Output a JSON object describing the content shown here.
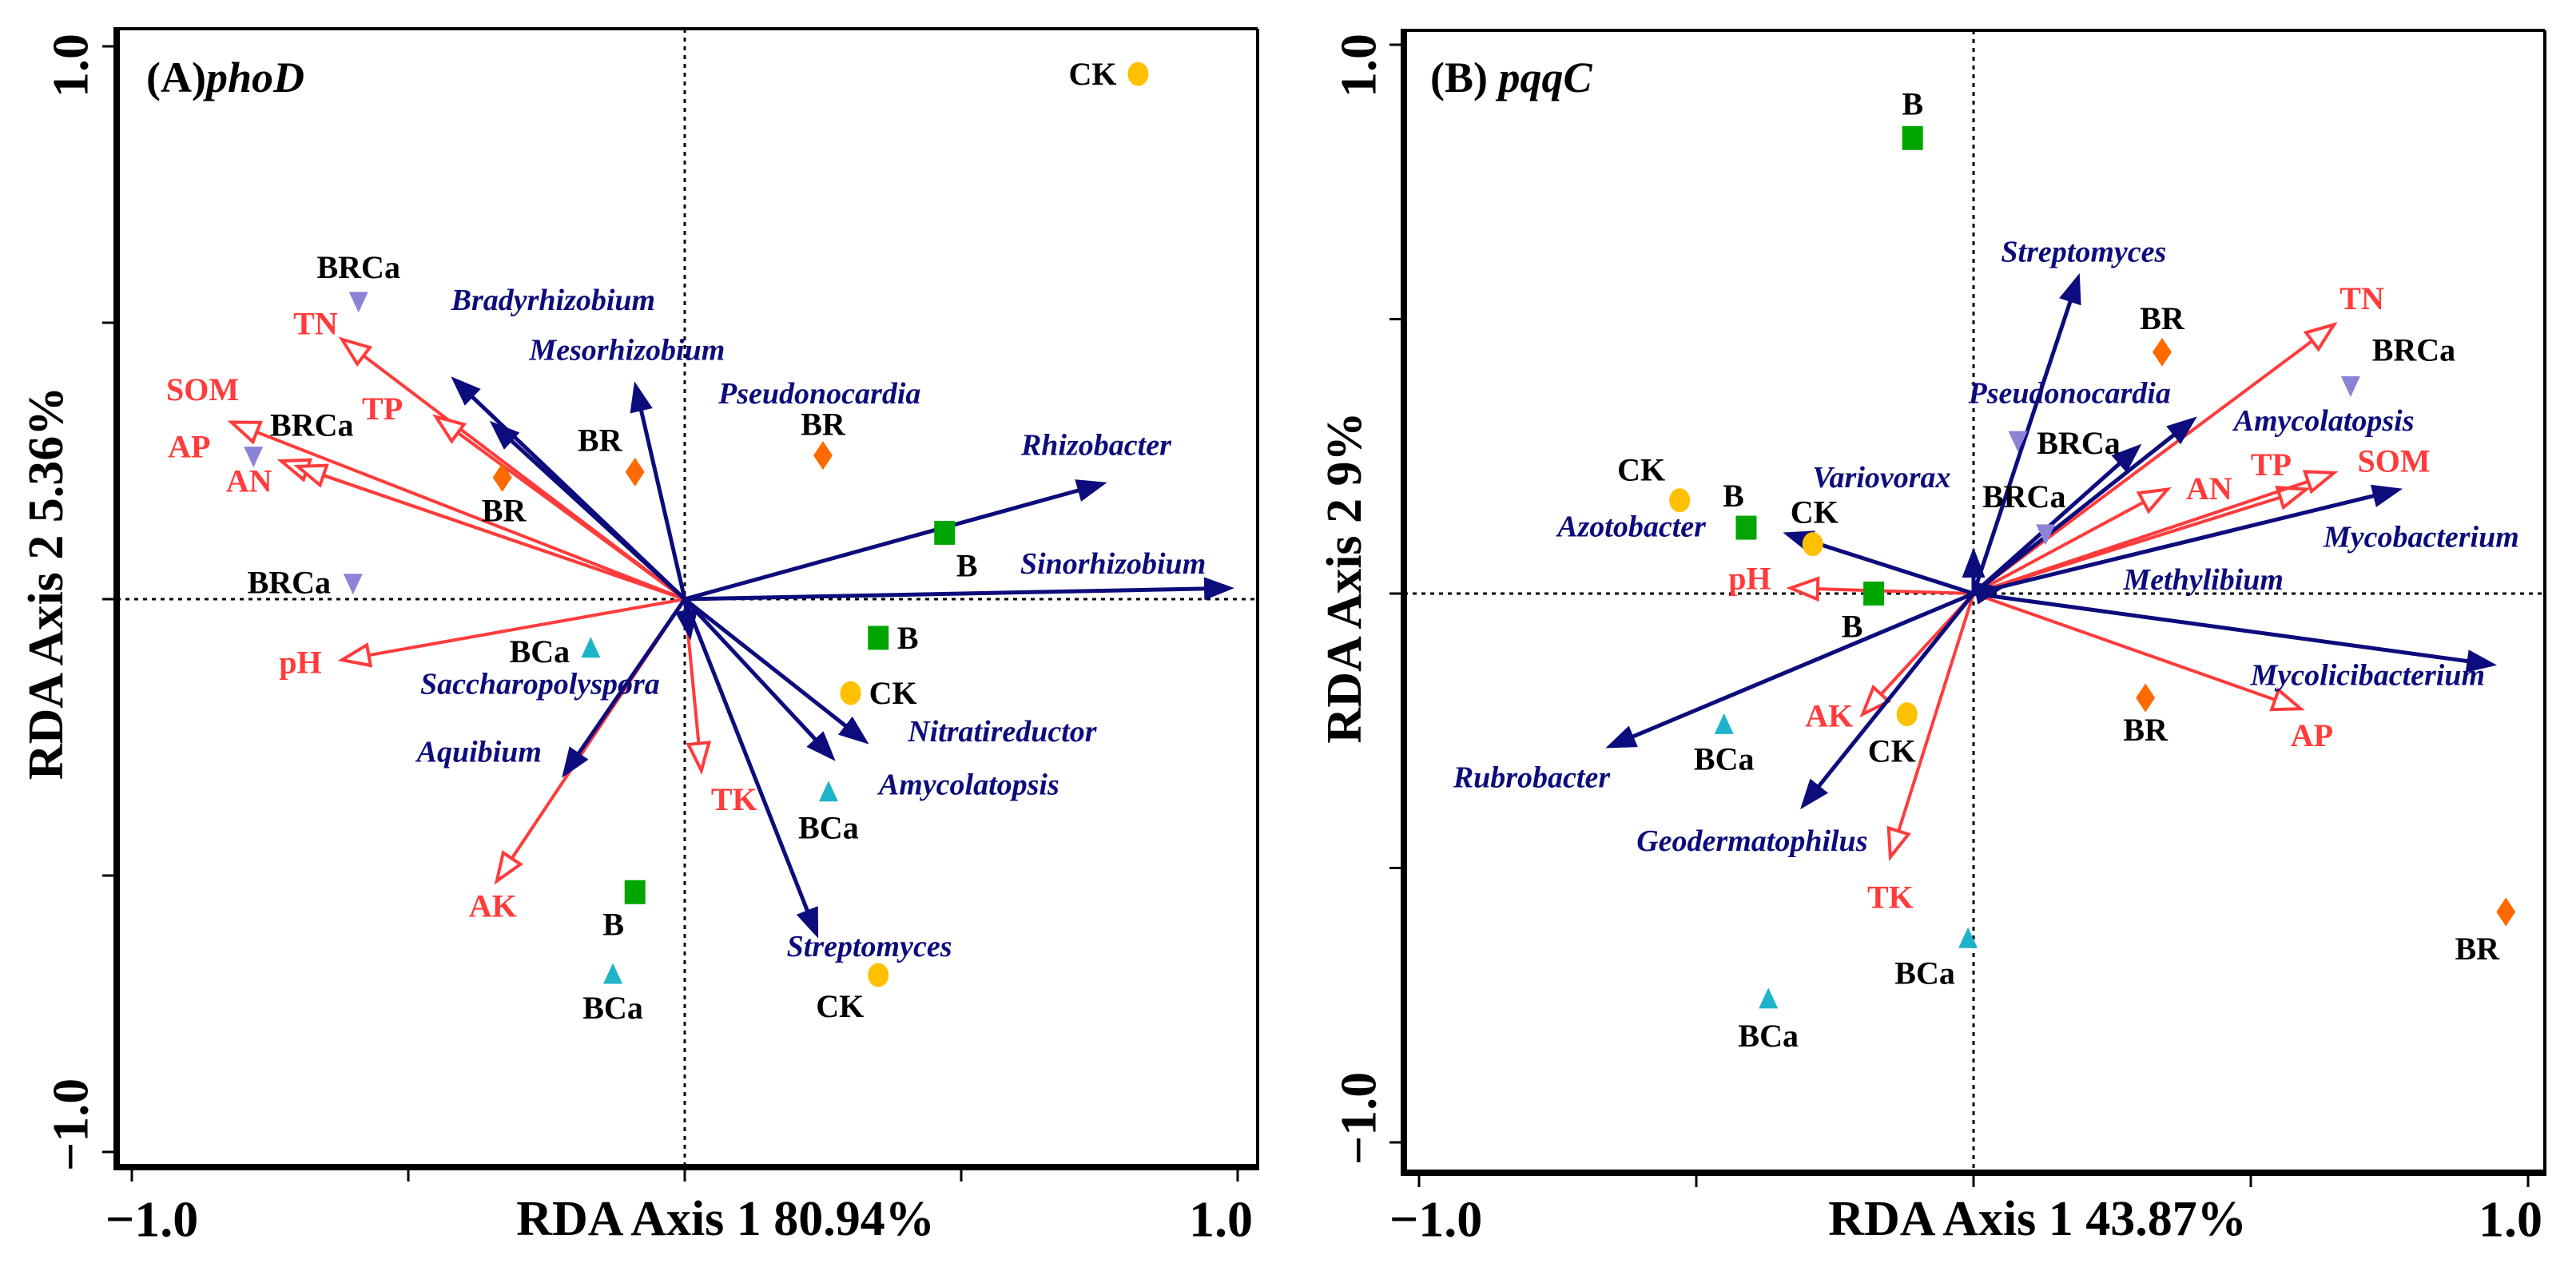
{
  "chart_data": [
    {
      "type": "scatter",
      "subtype": "rda-biplot",
      "title_prefix": "(A)",
      "title_gene": "phoD",
      "xlabel": "RDA Axis 1 80.94%",
      "ylabel": "RDA Axis 2 5.36%",
      "xlim": [
        -1.0,
        1.0
      ],
      "ylim": [
        -1.0,
        1.0
      ],
      "x_tick_labels": [
        "−1.0",
        "1.0"
      ],
      "y_tick_labels": [
        "1.0",
        "−1.0"
      ],
      "zero_lines": "dotted",
      "samples": [
        {
          "group": "CK",
          "x": 0.82,
          "y": 0.95
        },
        {
          "group": "BRCa",
          "x": -0.59,
          "y": 0.54
        },
        {
          "group": "BRCa",
          "x": -0.78,
          "y": 0.26
        },
        {
          "group": "BRCa",
          "x": -0.6,
          "y": 0.03
        },
        {
          "group": "BR",
          "x": -0.33,
          "y": 0.22
        },
        {
          "group": "BR",
          "x": -0.09,
          "y": 0.23
        },
        {
          "group": "BR",
          "x": 0.25,
          "y": 0.26
        },
        {
          "group": "B",
          "x": 0.47,
          "y": 0.12
        },
        {
          "group": "B",
          "x": 0.35,
          "y": -0.07
        },
        {
          "group": "B",
          "x": -0.09,
          "y": -0.53
        },
        {
          "group": "CK",
          "x": 0.3,
          "y": -0.17
        },
        {
          "group": "CK",
          "x": 0.35,
          "y": -0.68
        },
        {
          "group": "BCa",
          "x": -0.17,
          "y": -0.09
        },
        {
          "group": "BCa",
          "x": 0.26,
          "y": -0.35
        },
        {
          "group": "BCa",
          "x": -0.13,
          "y": -0.68
        }
      ],
      "species_arrows": [
        {
          "name": "Bradyrhizobium",
          "x": -0.42,
          "y": 0.4
        },
        {
          "name": "Mesorhizobium",
          "x": -0.35,
          "y": 0.32
        },
        {
          "name": "Pseudonocardia",
          "x": -0.09,
          "y": 0.39
        },
        {
          "name": "Rhizobacter",
          "x": 0.76,
          "y": 0.21
        },
        {
          "name": "Sinorhizobium",
          "x": 0.99,
          "y": 0.02
        },
        {
          "name": "Saccharopolyspora",
          "x": 0.01,
          "y": -0.07
        },
        {
          "name": "Aquibium",
          "x": -0.22,
          "y": -0.32
        },
        {
          "name": "Nitratireductor",
          "x": 0.33,
          "y": -0.26
        },
        {
          "name": "Amycolatopsis",
          "x": 0.27,
          "y": -0.29
        },
        {
          "name": "Streptomyces",
          "x": 0.24,
          "y": -0.61
        }
      ],
      "env_arrows": [
        {
          "name": "TN",
          "x": -0.62,
          "y": 0.47
        },
        {
          "name": "TP",
          "x": -0.45,
          "y": 0.33
        },
        {
          "name": "SOM",
          "x": -0.82,
          "y": 0.32
        },
        {
          "name": "AP",
          "x": -0.73,
          "y": 0.25
        },
        {
          "name": "AN",
          "x": -0.7,
          "y": 0.24
        },
        {
          "name": "pH",
          "x": -0.62,
          "y": -0.11
        },
        {
          "name": "AK",
          "x": -0.34,
          "y": -0.51
        },
        {
          "name": "TK",
          "x": 0.03,
          "y": -0.31
        }
      ]
    },
    {
      "type": "scatter",
      "subtype": "rda-biplot",
      "title_prefix": "(B) ",
      "title_gene": "pqqC",
      "xlabel": "RDA Axis 1 43.87%",
      "ylabel": "RDA Axis 2 9%",
      "xlim": [
        -1.0,
        1.0
      ],
      "ylim": [
        -1.0,
        1.0
      ],
      "x_tick_labels": [
        "−1.0",
        "1.0"
      ],
      "y_tick_labels": [
        "1.0",
        "−1.0"
      ],
      "zero_lines": "dotted",
      "samples": [
        {
          "group": "B",
          "x": -0.11,
          "y": 0.83
        },
        {
          "group": "BR",
          "x": 0.34,
          "y": 0.44
        },
        {
          "group": "BRCa",
          "x": 0.68,
          "y": 0.38
        },
        {
          "group": "BRCa",
          "x": 0.08,
          "y": 0.28
        },
        {
          "group": "BRCa",
          "x": 0.13,
          "y": 0.11
        },
        {
          "group": "CK",
          "x": -0.53,
          "y": 0.17
        },
        {
          "group": "B",
          "x": -0.41,
          "y": 0.12
        },
        {
          "group": "CK",
          "x": -0.29,
          "y": 0.09
        },
        {
          "group": "B",
          "x": -0.18,
          "y": 0.0
        },
        {
          "group": "BR",
          "x": 0.31,
          "y": -0.19
        },
        {
          "group": "CK",
          "x": -0.12,
          "y": -0.22
        },
        {
          "group": "BCa",
          "x": -0.45,
          "y": -0.24
        },
        {
          "group": "BCa",
          "x": -0.01,
          "y": -0.63
        },
        {
          "group": "BCa",
          "x": -0.37,
          "y": -0.74
        },
        {
          "group": "BR",
          "x": 0.96,
          "y": -0.58
        }
      ],
      "species_arrows": [
        {
          "name": "Streptomyces",
          "x": 0.19,
          "y": 0.58
        },
        {
          "name": "Pseudonocardia",
          "x": 0.3,
          "y": 0.27
        },
        {
          "name": "Amycolatopsis",
          "x": 0.4,
          "y": 0.32
        },
        {
          "name": "Variovorax",
          "x": 0.0,
          "y": 0.08
        },
        {
          "name": "Mycobacterium",
          "x": 0.77,
          "y": 0.19
        },
        {
          "name": "Methylibium",
          "x": 0.05,
          "y": 0.01
        },
        {
          "name": "Mycolicibacterium",
          "x": 0.94,
          "y": -0.13
        },
        {
          "name": "Azotobacter",
          "x": -0.34,
          "y": 0.11
        },
        {
          "name": "Rubrobacter",
          "x": -0.66,
          "y": -0.28
        },
        {
          "name": "Geodermatophilus",
          "x": -0.31,
          "y": -0.39
        }
      ],
      "env_arrows": [
        {
          "name": "TN",
          "x": 0.65,
          "y": 0.49
        },
        {
          "name": "AN",
          "x": 0.35,
          "y": 0.19
        },
        {
          "name": "TP",
          "x": 0.6,
          "y": 0.19
        },
        {
          "name": "SOM",
          "x": 0.65,
          "y": 0.22
        },
        {
          "name": "pH",
          "x": -0.33,
          "y": 0.01
        },
        {
          "name": "AK",
          "x": -0.2,
          "y": -0.22
        },
        {
          "name": "AP",
          "x": 0.59,
          "y": -0.21
        },
        {
          "name": "TK",
          "x": -0.15,
          "y": -0.48
        }
      ]
    }
  ],
  "group_styles": {
    "CK": {
      "marker": "circle",
      "color": "#ffc000"
    },
    "B": {
      "marker": "square",
      "color": "#00a600"
    },
    "BR": {
      "marker": "diamond",
      "color": "#ff6a00"
    },
    "BCa": {
      "marker": "triangle-up",
      "color": "#1fb3c9"
    },
    "BRCa": {
      "marker": "triangle-down",
      "color": "#8b84d6"
    }
  },
  "colors": {
    "species_arrow": "#0c0c7c",
    "env_arrow": "#ff3b3b",
    "axis": "#000000"
  }
}
